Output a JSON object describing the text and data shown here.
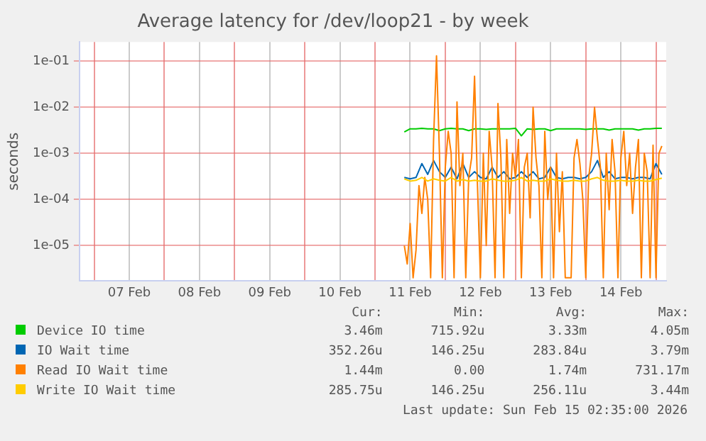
{
  "chart_data": {
    "type": "line",
    "title": "Average latency for /dev/loop21 - by week",
    "ylabel": "seconds",
    "log": "y",
    "grid": true,
    "legend": "bottom",
    "ylim": [
      1.7e-06,
      0.26
    ],
    "yticks": [
      {
        "value": 1e-05,
        "label": "1e-05"
      },
      {
        "value": 0.0001,
        "label": "1e-04"
      },
      {
        "value": 0.001,
        "label": "1e-03"
      },
      {
        "value": 0.01,
        "label": "1e-02"
      },
      {
        "value": 0.1,
        "label": "1e-01"
      }
    ],
    "xlim": [
      "2026-02-06T19:00",
      "2026-02-15T03:30"
    ],
    "xticks": [
      {
        "value": "2026-02-07",
        "label": null
      },
      {
        "value": "2026-02-07T12:00",
        "label": "07 Feb"
      },
      {
        "value": "2026-02-08",
        "label": null
      },
      {
        "value": "2026-02-08T12:00",
        "label": "08 Feb"
      },
      {
        "value": "2026-02-09",
        "label": null
      },
      {
        "value": "2026-02-09T12:00",
        "label": "09 Feb"
      },
      {
        "value": "2026-02-10",
        "label": null
      },
      {
        "value": "2026-02-10T12:00",
        "label": "10 Feb"
      },
      {
        "value": "2026-02-11",
        "label": null
      },
      {
        "value": "2026-02-11T12:00",
        "label": "11 Feb"
      },
      {
        "value": "2026-02-12",
        "label": null
      },
      {
        "value": "2026-02-12T12:00",
        "label": "12 Feb"
      },
      {
        "value": "2026-02-13",
        "label": null
      },
      {
        "value": "2026-02-13T12:00",
        "label": "13 Feb"
      },
      {
        "value": "2026-02-14",
        "label": null
      },
      {
        "value": "2026-02-14T12:00",
        "label": "14 Feb"
      },
      {
        "value": "2026-02-15",
        "label": null
      }
    ],
    "x": [
      "2026-02-11T10:00",
      "2026-02-11T11:00",
      "2026-02-11T12:00",
      "2026-02-11T13:00",
      "2026-02-11T14:00",
      "2026-02-11T15:00",
      "2026-02-11T16:00",
      "2026-02-11T17:00",
      "2026-02-11T18:00",
      "2026-02-11T19:00",
      "2026-02-11T20:00",
      "2026-02-11T21:00",
      "2026-02-11T22:00",
      "2026-02-11T23:00",
      "2026-02-12T00:00",
      "2026-02-12T01:00",
      "2026-02-12T02:00",
      "2026-02-12T03:00",
      "2026-02-12T04:00",
      "2026-02-12T05:00",
      "2026-02-12T06:00",
      "2026-02-12T07:00",
      "2026-02-12T08:00",
      "2026-02-12T09:00",
      "2026-02-12T10:00",
      "2026-02-12T11:00",
      "2026-02-12T12:00",
      "2026-02-12T13:00",
      "2026-02-12T14:00",
      "2026-02-12T15:00",
      "2026-02-12T16:00",
      "2026-02-12T17:00",
      "2026-02-12T18:00",
      "2026-02-12T19:00",
      "2026-02-12T20:00",
      "2026-02-12T21:00",
      "2026-02-12T22:00",
      "2026-02-12T23:00",
      "2026-02-13T00:00",
      "2026-02-13T01:00",
      "2026-02-13T02:00",
      "2026-02-13T03:00",
      "2026-02-13T04:00",
      "2026-02-13T05:00",
      "2026-02-13T06:00",
      "2026-02-13T07:00",
      "2026-02-13T08:00",
      "2026-02-13T09:00",
      "2026-02-13T10:00",
      "2026-02-13T11:00",
      "2026-02-13T12:00",
      "2026-02-13T13:00",
      "2026-02-13T14:00",
      "2026-02-13T15:00",
      "2026-02-13T16:00",
      "2026-02-13T17:00",
      "2026-02-13T18:00",
      "2026-02-13T19:00",
      "2026-02-13T20:00",
      "2026-02-13T21:00",
      "2026-02-13T22:00",
      "2026-02-13T23:00",
      "2026-02-14T00:00",
      "2026-02-14T01:00",
      "2026-02-14T02:00",
      "2026-02-14T03:00",
      "2026-02-14T04:00",
      "2026-02-14T05:00",
      "2026-02-14T06:00",
      "2026-02-14T07:00",
      "2026-02-14T08:00",
      "2026-02-14T09:00",
      "2026-02-14T10:00",
      "2026-02-14T11:00",
      "2026-02-14T12:00",
      "2026-02-14T13:00",
      "2026-02-14T14:00",
      "2026-02-14T15:00",
      "2026-02-14T16:00",
      "2026-02-14T17:00",
      "2026-02-14T18:00",
      "2026-02-14T19:00",
      "2026-02-14T20:00",
      "2026-02-14T21:00",
      "2026-02-14T22:00",
      "2026-02-14T23:00",
      "2026-02-15T00:00",
      "2026-02-15T01:00",
      "2026-02-15T02:00"
    ],
    "series": [
      {
        "name": "Device IO time",
        "color": "#00cc00",
        "x": [
          "2026-02-11T10:00",
          "2026-02-11T12:00",
          "2026-02-11T14:00",
          "2026-02-11T16:00",
          "2026-02-11T18:00",
          "2026-02-11T20:00",
          "2026-02-11T22:00",
          "2026-02-12T00:00",
          "2026-02-12T02:00",
          "2026-02-12T04:00",
          "2026-02-12T06:00",
          "2026-02-12T08:00",
          "2026-02-12T10:00",
          "2026-02-12T12:00",
          "2026-02-12T14:00",
          "2026-02-12T16:00",
          "2026-02-12T18:00",
          "2026-02-12T20:00",
          "2026-02-12T22:00",
          "2026-02-13T00:00",
          "2026-02-13T02:00",
          "2026-02-13T04:00",
          "2026-02-13T06:00",
          "2026-02-13T08:00",
          "2026-02-13T10:00",
          "2026-02-13T12:00",
          "2026-02-13T14:00",
          "2026-02-13T16:00",
          "2026-02-13T18:00",
          "2026-02-13T20:00",
          "2026-02-13T22:00",
          "2026-02-14T00:00",
          "2026-02-14T02:00",
          "2026-02-14T04:00",
          "2026-02-14T06:00",
          "2026-02-14T08:00",
          "2026-02-14T10:00",
          "2026-02-14T12:00",
          "2026-02-14T14:00",
          "2026-02-14T16:00",
          "2026-02-14T18:00",
          "2026-02-14T20:00",
          "2026-02-14T22:00",
          "2026-02-15T00:00",
          "2026-02-15T02:00"
        ],
        "values": [
          0.0029,
          0.0034,
          0.0034,
          0.0035,
          0.0034,
          0.0034,
          0.0031,
          0.0034,
          0.0035,
          0.0034,
          0.0034,
          0.0031,
          0.0034,
          0.0034,
          0.0033,
          0.0034,
          0.0034,
          0.0034,
          0.0034,
          0.0035,
          0.0024,
          0.0034,
          0.0033,
          0.0034,
          0.0034,
          0.0031,
          0.0034,
          0.0034,
          0.0034,
          0.0034,
          0.0034,
          0.0033,
          0.0034,
          0.0034,
          0.0034,
          0.0032,
          0.0034,
          0.0034,
          0.0034,
          0.0034,
          0.0032,
          0.0034,
          0.0034,
          0.0035,
          0.0035
        ]
      },
      {
        "name": "IO Wait time",
        "color": "#0066b3",
        "x": [
          "2026-02-11T10:00",
          "2026-02-11T12:00",
          "2026-02-11T14:00",
          "2026-02-11T16:00",
          "2026-02-11T18:00",
          "2026-02-11T20:00",
          "2026-02-11T22:00",
          "2026-02-12T00:00",
          "2026-02-12T02:00",
          "2026-02-12T04:00",
          "2026-02-12T06:00",
          "2026-02-12T08:00",
          "2026-02-12T10:00",
          "2026-02-12T12:00",
          "2026-02-12T14:00",
          "2026-02-12T16:00",
          "2026-02-12T18:00",
          "2026-02-12T20:00",
          "2026-02-12T22:00",
          "2026-02-13T00:00",
          "2026-02-13T02:00",
          "2026-02-13T04:00",
          "2026-02-13T06:00",
          "2026-02-13T08:00",
          "2026-02-13T10:00",
          "2026-02-13T12:00",
          "2026-02-13T14:00",
          "2026-02-13T16:00",
          "2026-02-13T18:00",
          "2026-02-13T20:00",
          "2026-02-13T22:00",
          "2026-02-14T00:00",
          "2026-02-14T02:00",
          "2026-02-14T04:00",
          "2026-02-14T06:00",
          "2026-02-14T08:00",
          "2026-02-14T10:00",
          "2026-02-14T12:00",
          "2026-02-14T14:00",
          "2026-02-14T16:00",
          "2026-02-14T18:00",
          "2026-02-14T20:00",
          "2026-02-14T22:00",
          "2026-02-15T00:00",
          "2026-02-15T02:00"
        ],
        "values": [
          0.0003,
          0.00028,
          0.0003,
          0.0006,
          0.00035,
          0.0007,
          0.0004,
          0.0003,
          0.0005,
          0.00028,
          0.0006,
          0.0003,
          0.0004,
          0.0003,
          0.00028,
          0.0005,
          0.0003,
          0.0004,
          0.00028,
          0.0003,
          0.0004,
          0.0003,
          0.0004,
          0.00028,
          0.0003,
          0.0005,
          0.0003,
          0.00028,
          0.0003,
          0.0003,
          0.00028,
          0.0003,
          0.0004,
          0.0007,
          0.0003,
          0.0004,
          0.00028,
          0.0003,
          0.0003,
          0.00028,
          0.0003,
          0.0003,
          0.00028,
          0.0006,
          0.00035
        ]
      },
      {
        "name": "Read IO Wait time",
        "color": "#ff8000",
        "values": [
          1e-05,
          4e-06,
          3e-05,
          2e-06,
          8e-06,
          0.0002,
          5e-05,
          0.0003,
          0.0001,
          2e-06,
          0.002,
          0.13,
          0.001,
          2e-06,
          0.0005,
          0.003,
          0.001,
          2e-06,
          0.013,
          0.0002,
          0.001,
          2e-06,
          0.0003,
          0.0008,
          0.047,
          0.0002,
          2e-06,
          0.001,
          1e-05,
          0.003,
          0.0005,
          2e-06,
          0.012,
          0.0008,
          2e-06,
          0.002,
          5e-05,
          0.001,
          0.0003,
          0.002,
          2e-06,
          0.0005,
          0.001,
          4e-05,
          0.01,
          0.0008,
          0.0002,
          2e-06,
          0.003,
          0.0001,
          0.0005,
          2e-06,
          0.001,
          2e-05,
          0.0004,
          2e-06,
          2e-06,
          2e-06,
          0.0008,
          0.002,
          0.0006,
          0.0001,
          2e-06,
          0.0003,
          0.001,
          0.01,
          0.002,
          0.0005,
          2e-06,
          0.001,
          6e-05,
          0.002,
          0.0004,
          2e-06,
          0.0008,
          0.003,
          0.0002,
          0.001,
          5e-05,
          0.0005,
          0.002,
          2e-06,
          0.001,
          0.0004,
          2e-06,
          0.0015,
          2e-06,
          0.001,
          0.00144
        ]
      },
      {
        "name": "Write IO Wait time",
        "color": "#ffcc00",
        "x": [
          "2026-02-11T10:00",
          "2026-02-11T12:00",
          "2026-02-11T14:00",
          "2026-02-11T16:00",
          "2026-02-11T18:00",
          "2026-02-11T20:00",
          "2026-02-11T22:00",
          "2026-02-12T00:00",
          "2026-02-12T02:00",
          "2026-02-12T04:00",
          "2026-02-12T06:00",
          "2026-02-12T08:00",
          "2026-02-12T10:00",
          "2026-02-12T12:00",
          "2026-02-12T14:00",
          "2026-02-12T16:00",
          "2026-02-12T18:00",
          "2026-02-12T20:00",
          "2026-02-12T22:00",
          "2026-02-13T00:00",
          "2026-02-13T02:00",
          "2026-02-13T04:00",
          "2026-02-13T06:00",
          "2026-02-13T08:00",
          "2026-02-13T10:00",
          "2026-02-13T12:00",
          "2026-02-13T14:00",
          "2026-02-13T16:00",
          "2026-02-13T18:00",
          "2026-02-13T20:00",
          "2026-02-13T22:00",
          "2026-02-14T00:00",
          "2026-02-14T02:00",
          "2026-02-14T04:00",
          "2026-02-14T06:00",
          "2026-02-14T08:00",
          "2026-02-14T10:00",
          "2026-02-14T12:00",
          "2026-02-14T14:00",
          "2026-02-14T16:00",
          "2026-02-14T18:00",
          "2026-02-14T20:00",
          "2026-02-14T22:00",
          "2026-02-15T00:00",
          "2026-02-15T02:00"
        ],
        "values": [
          0.00028,
          0.00025,
          0.00026,
          0.0003,
          0.00025,
          0.00028,
          0.00026,
          0.00025,
          0.0003,
          0.00025,
          0.00027,
          0.00025,
          0.00026,
          0.00025,
          0.00025,
          0.00028,
          0.00026,
          0.00025,
          0.00025,
          0.00026,
          0.0003,
          0.00025,
          0.00026,
          0.00025,
          0.00025,
          0.00028,
          0.00026,
          0.00025,
          0.00025,
          0.00026,
          0.00025,
          0.00025,
          0.00028,
          0.0003,
          0.00026,
          0.00025,
          0.00025,
          0.00026,
          0.00025,
          0.00025,
          0.00026,
          0.00025,
          0.00025,
          0.00027,
          0.00029
        ]
      }
    ],
    "annotations": [
      "Cur:",
      "Min:",
      "Avg:",
      "Max:",
      "3.46m",
      "715.92u",
      "3.33m",
      "4.05m",
      "352.26u",
      "146.25u",
      "283.84u",
      "3.79m",
      "1.44m",
      "0.00",
      "1.74m",
      "731.17m",
      "285.75u",
      "146.25u",
      "256.11u",
      "3.44m",
      "Last update: Sun Feb 15 02:35:00 2026"
    ]
  }
}
